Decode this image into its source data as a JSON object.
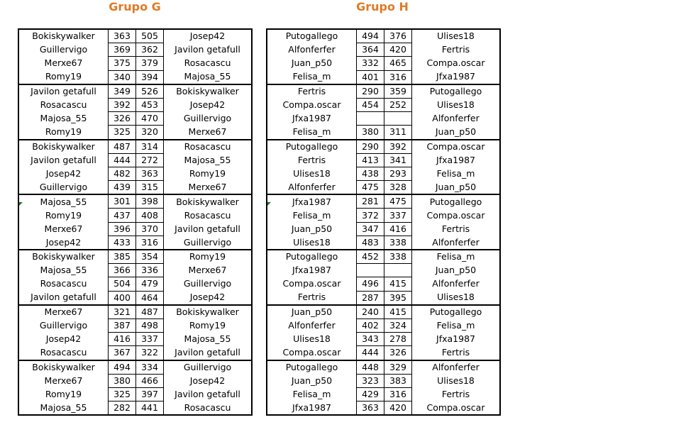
{
  "groups": [
    {
      "title": "Grupo G",
      "matches": [
        [
          "Bokiskywalker",
          "363",
          "505",
          "Josep42"
        ],
        [
          "Guillervigo",
          "369",
          "362",
          "Javilon getafull"
        ],
        [
          "Merxe67",
          "375",
          "379",
          "Rosacascu"
        ],
        [
          "Romy19",
          "340",
          "394",
          "Majosa_55"
        ],
        [
          "Javilon getafull",
          "349",
          "526",
          "Bokiskywalker"
        ],
        [
          "Rosacascu",
          "392",
          "453",
          "Josep42"
        ],
        [
          "Majosa_55",
          "326",
          "470",
          "Guillervigo"
        ],
        [
          "Romy19",
          "325",
          "320",
          "Merxe67"
        ],
        [
          "Bokiskywalker",
          "487",
          "314",
          "Rosacascu"
        ],
        [
          "Javilon getafull",
          "444",
          "272",
          "Majosa_55"
        ],
        [
          "Josep42",
          "482",
          "363",
          "Romy19"
        ],
        [
          "Guillervigo",
          "439",
          "315",
          "Merxe67"
        ],
        [
          "Majosa_55",
          "301",
          "398",
          "Bokiskywalker"
        ],
        [
          "Romy19",
          "437",
          "408",
          "Rosacascu"
        ],
        [
          "Merxe67",
          "396",
          "370",
          "Javilon getafull"
        ],
        [
          "Josep42",
          "433",
          "316",
          "Guillervigo"
        ],
        [
          "Bokiskywalker",
          "385",
          "354",
          "Romy19"
        ],
        [
          "Majosa_55",
          "366",
          "336",
          "Merxe67"
        ],
        [
          "Rosacascu",
          "504",
          "479",
          "Guillervigo"
        ],
        [
          "Javilon getafull",
          "400",
          "464",
          "Josep42"
        ],
        [
          "Merxe67",
          "321",
          "487",
          "Bokiskywalker"
        ],
        [
          "Guillervigo",
          "387",
          "498",
          "Romy19"
        ],
        [
          "Josep42",
          "416",
          "337",
          "Majosa_55"
        ],
        [
          "Rosacascu",
          "367",
          "322",
          "Javilon getafull"
        ],
        [
          "Bokiskywalker",
          "494",
          "334",
          "Guillervigo"
        ],
        [
          "Merxe67",
          "380",
          "466",
          "Josep42"
        ],
        [
          "Romy19",
          "325",
          "397",
          "Javilon getafull"
        ],
        [
          "Majosa_55",
          "282",
          "441",
          "Rosacascu"
        ]
      ]
    },
    {
      "title": "Grupo H",
      "matches": [
        [
          "Putogallego",
          "494",
          "376",
          "Ulises18"
        ],
        [
          "Alfonferfer",
          "364",
          "420",
          "Fertris"
        ],
        [
          "Juan_p50",
          "332",
          "465",
          "Compa.oscar"
        ],
        [
          "Felisa_m",
          "401",
          "316",
          "Jfxa1987"
        ],
        [
          "Fertris",
          "290",
          "359",
          "Putogallego"
        ],
        [
          "Compa.oscar",
          "454",
          "252",
          "Ulises18"
        ],
        [
          "Jfxa1987",
          "",
          "",
          "Alfonferfer"
        ],
        [
          "Felisa_m",
          "380",
          "311",
          "Juan_p50"
        ],
        [
          "Putogallego",
          "290",
          "392",
          "Compa.oscar"
        ],
        [
          "Fertris",
          "413",
          "341",
          "Jfxa1987"
        ],
        [
          "Ulises18",
          "438",
          "293",
          "Felisa_m"
        ],
        [
          "Alfonferfer",
          "475",
          "328",
          "Juan_p50"
        ],
        [
          "Jfxa1987",
          "281",
          "475",
          "Putogallego"
        ],
        [
          "Felisa_m",
          "372",
          "337",
          "Compa.oscar"
        ],
        [
          "Juan_p50",
          "347",
          "416",
          "Fertris"
        ],
        [
          "Ulises18",
          "483",
          "338",
          "Alfonferfer"
        ],
        [
          "Putogallego",
          "452",
          "338",
          "Felisa_m"
        ],
        [
          "Jfxa1987",
          "",
          "",
          "Juan_p50"
        ],
        [
          "Compa.oscar",
          "496",
          "415",
          "Alfonferfer"
        ],
        [
          "Fertris",
          "287",
          "395",
          "Ulises18"
        ],
        [
          "Juan_p50",
          "240",
          "415",
          "Putogallego"
        ],
        [
          "Alfonferfer",
          "402",
          "324",
          "Felisa_m"
        ],
        [
          "Ulises18",
          "343",
          "278",
          "Jfxa1987"
        ],
        [
          "Compa.oscar",
          "444",
          "326",
          "Fertris"
        ],
        [
          "Putogallego",
          "448",
          "329",
          "Alfonferfer"
        ],
        [
          "Juan_p50",
          "323",
          "383",
          "Ulises18"
        ],
        [
          "Felisa_m",
          "429",
          "316",
          "Fertris"
        ],
        [
          "Jfxa1987",
          "363",
          "420",
          "Compa.oscar"
        ]
      ]
    }
  ],
  "colors": {
    "title": "#e07a24",
    "comment_marker": "#1f7a1f"
  }
}
